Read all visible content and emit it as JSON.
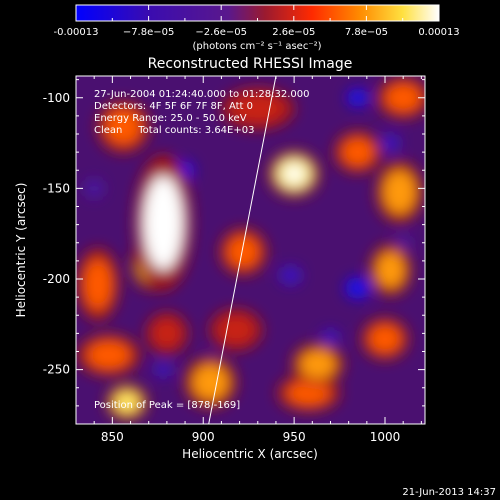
{
  "colorbar": {
    "tick_labels": [
      "-0.00013",
      "−7.8e−05",
      "−2.6e−05",
      "2.6e−05",
      "7.8e−05",
      "0.00013"
    ],
    "units": "(photons cm⁻² s⁻¹ asec⁻²)",
    "colors": [
      "#0000ff",
      "#4b0b9a",
      "#6b1f8f",
      "#aa1a1a",
      "#ff3a00",
      "#ff9900",
      "#ffee55",
      "#ffffff"
    ]
  },
  "chart_data": {
    "type": "heatmap",
    "title": "Reconstructed RHESSI Image",
    "xlabel": "Heliocentric X (arcsec)",
    "ylabel": "Heliocentric Y (arcsec)",
    "xlim": [
      830,
      1022
    ],
    "ylim": [
      -280,
      -88
    ],
    "x_ticks": [
      850,
      900,
      950,
      1000
    ],
    "y_ticks": [
      -100,
      -150,
      -200,
      -250
    ],
    "value_range": [
      -0.00013,
      0.00013
    ],
    "info_lines": [
      "27-Jun-2004 01:24:40.000 to 01:28:32.000",
      "Detectors: 4F 5F 6F 7F 8F, Att 0",
      "Energy Range: 25.0 - 50.0 keV",
      "Clean     Total counts: 3.64E+03"
    ],
    "peak_label": "Position of Peak = [878,-169]",
    "peak": [
      878,
      -169
    ],
    "sources": [
      {
        "x": 878,
        "y": -169,
        "value": 1.0,
        "rx": 11,
        "ry": 26
      },
      {
        "x": 872,
        "y": -192,
        "value": 0.75,
        "rx": 8,
        "ry": 10
      },
      {
        "x": 950,
        "y": -142,
        "value": 0.85,
        "rx": 10,
        "ry": 9
      },
      {
        "x": 985,
        "y": -130,
        "value": 0.45,
        "rx": 9,
        "ry": 8
      },
      {
        "x": 1008,
        "y": -152,
        "value": 0.6,
        "rx": 9,
        "ry": 12
      },
      {
        "x": 1003,
        "y": -195,
        "value": 0.55,
        "rx": 8,
        "ry": 10
      },
      {
        "x": 1000,
        "y": -233,
        "value": 0.5,
        "rx": 9,
        "ry": 8
      },
      {
        "x": 963,
        "y": -247,
        "value": 0.55,
        "rx": 10,
        "ry": 8
      },
      {
        "x": 958,
        "y": -263,
        "value": 0.45,
        "rx": 12,
        "ry": 7
      },
      {
        "x": 904,
        "y": -257,
        "value": 0.55,
        "rx": 10,
        "ry": 10
      },
      {
        "x": 848,
        "y": -242,
        "value": 0.45,
        "rx": 12,
        "ry": 8
      },
      {
        "x": 858,
        "y": -268,
        "value": 0.75,
        "rx": 8,
        "ry": 7
      },
      {
        "x": 842,
        "y": -203,
        "value": 0.45,
        "rx": 8,
        "ry": 14
      },
      {
        "x": 922,
        "y": -185,
        "value": 0.4,
        "rx": 9,
        "ry": 9
      },
      {
        "x": 856,
        "y": -116,
        "value": 0.5,
        "rx": 10,
        "ry": 10
      },
      {
        "x": 930,
        "y": -106,
        "value": 0.35,
        "rx": 14,
        "ry": 8
      },
      {
        "x": 1010,
        "y": -100,
        "value": 0.45,
        "rx": 10,
        "ry": 8
      },
      {
        "x": 918,
        "y": -228,
        "value": 0.35,
        "rx": 10,
        "ry": 8
      },
      {
        "x": 880,
        "y": -230,
        "value": 0.3,
        "rx": 8,
        "ry": 8
      },
      {
        "x": 890,
        "y": -140,
        "value": -0.8,
        "rx": 5,
        "ry": 5
      },
      {
        "x": 985,
        "y": -100,
        "value": -0.8,
        "rx": 6,
        "ry": 5
      },
      {
        "x": 1003,
        "y": -125,
        "value": -0.7,
        "rx": 5,
        "ry": 5
      },
      {
        "x": 985,
        "y": -205,
        "value": -0.9,
        "rx": 7,
        "ry": 6
      },
      {
        "x": 970,
        "y": -232,
        "value": -0.6,
        "rx": 5,
        "ry": 4
      },
      {
        "x": 878,
        "y": -250,
        "value": -0.6,
        "rx": 5,
        "ry": 4
      },
      {
        "x": 948,
        "y": -198,
        "value": -0.6,
        "rx": 6,
        "ry": 5
      },
      {
        "x": 905,
        "y": -245,
        "value": -0.5,
        "rx": 5,
        "ry": 4
      },
      {
        "x": 1010,
        "y": -180,
        "value": -0.5,
        "rx": 4,
        "ry": 4
      },
      {
        "x": 840,
        "y": -150,
        "value": -0.4,
        "rx": 5,
        "ry": 5
      }
    ],
    "limb_line": [
      [
        903,
        -280
      ],
      [
        940,
        -88
      ]
    ]
  },
  "footer": {
    "timestamp": "21-Jun-2013 14:37"
  }
}
